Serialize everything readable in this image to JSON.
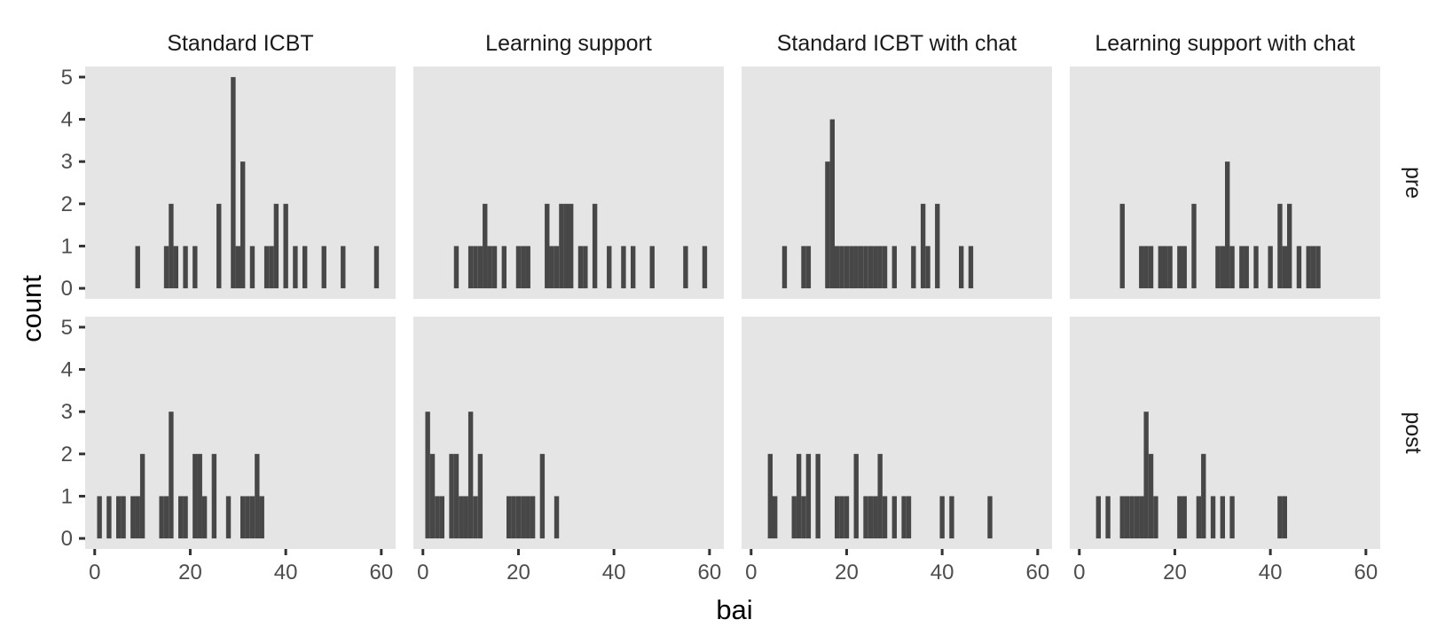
{
  "chart_data": {
    "type": "bar",
    "xlabel": "bai",
    "ylabel": "count",
    "xlim": [
      -2,
      63
    ],
    "ylim": [
      0,
      5
    ],
    "xticks": [
      0,
      20,
      40,
      60
    ],
    "yticks": [
      0,
      1,
      2,
      3,
      4,
      5
    ],
    "columns": [
      "Standard ICBT",
      "Learning support",
      "Standard ICBT with chat",
      "Learning support with chat"
    ],
    "rows": [
      "pre",
      "post"
    ],
    "panels": [
      {
        "column": "Standard ICBT",
        "row": "pre",
        "bars": [
          [
            9,
            1
          ],
          [
            15,
            1
          ],
          [
            16,
            2
          ],
          [
            17,
            1
          ],
          [
            19,
            1
          ],
          [
            21,
            1
          ],
          [
            26,
            2
          ],
          [
            29,
            5
          ],
          [
            30,
            1
          ],
          [
            31,
            3
          ],
          [
            33,
            1
          ],
          [
            36,
            1
          ],
          [
            37,
            1
          ],
          [
            38,
            2
          ],
          [
            40,
            2
          ],
          [
            42,
            1
          ],
          [
            44,
            1
          ],
          [
            48,
            1
          ],
          [
            52,
            1
          ],
          [
            59,
            1
          ]
        ]
      },
      {
        "column": "Learning support",
        "row": "pre",
        "bars": [
          [
            7,
            1
          ],
          [
            10,
            1
          ],
          [
            11,
            1
          ],
          [
            12,
            1
          ],
          [
            13,
            2
          ],
          [
            14,
            1
          ],
          [
            15,
            1
          ],
          [
            17,
            1
          ],
          [
            20,
            1
          ],
          [
            21,
            1
          ],
          [
            22,
            1
          ],
          [
            26,
            2
          ],
          [
            27,
            1
          ],
          [
            28,
            1
          ],
          [
            29,
            2
          ],
          [
            30,
            2
          ],
          [
            31,
            2
          ],
          [
            33,
            1
          ],
          [
            34,
            1
          ],
          [
            36,
            2
          ],
          [
            39,
            1
          ],
          [
            42,
            1
          ],
          [
            44,
            1
          ],
          [
            48,
            1
          ],
          [
            55,
            1
          ],
          [
            59,
            1
          ]
        ]
      },
      {
        "column": "Standard ICBT with chat",
        "row": "pre",
        "bars": [
          [
            7,
            1
          ],
          [
            11,
            1
          ],
          [
            12,
            1
          ],
          [
            16,
            3
          ],
          [
            17,
            4
          ],
          [
            18,
            1
          ],
          [
            19,
            1
          ],
          [
            20,
            1
          ],
          [
            21,
            1
          ],
          [
            22,
            1
          ],
          [
            23,
            1
          ],
          [
            24,
            1
          ],
          [
            25,
            1
          ],
          [
            26,
            1
          ],
          [
            27,
            1
          ],
          [
            28,
            1
          ],
          [
            30,
            1
          ],
          [
            34,
            1
          ],
          [
            36,
            2
          ],
          [
            37,
            1
          ],
          [
            39,
            2
          ],
          [
            44,
            1
          ],
          [
            46,
            1
          ]
        ]
      },
      {
        "column": "Learning support with chat",
        "row": "pre",
        "bars": [
          [
            9,
            2
          ],
          [
            13,
            1
          ],
          [
            14,
            1
          ],
          [
            15,
            1
          ],
          [
            17,
            1
          ],
          [
            18,
            1
          ],
          [
            19,
            1
          ],
          [
            21,
            1
          ],
          [
            22,
            1
          ],
          [
            24,
            2
          ],
          [
            29,
            1
          ],
          [
            30,
            1
          ],
          [
            31,
            3
          ],
          [
            32,
            1
          ],
          [
            34,
            1
          ],
          [
            35,
            1
          ],
          [
            37,
            1
          ],
          [
            40,
            1
          ],
          [
            42,
            2
          ],
          [
            43,
            1
          ],
          [
            44,
            2
          ],
          [
            46,
            1
          ],
          [
            48,
            1
          ],
          [
            49,
            1
          ],
          [
            50,
            1
          ]
        ]
      },
      {
        "column": "Standard ICBT",
        "row": "post",
        "bars": [
          [
            1,
            1
          ],
          [
            3,
            1
          ],
          [
            5,
            1
          ],
          [
            6,
            1
          ],
          [
            8,
            1
          ],
          [
            9,
            1
          ],
          [
            10,
            2
          ],
          [
            14,
            1
          ],
          [
            15,
            1
          ],
          [
            16,
            3
          ],
          [
            18,
            1
          ],
          [
            19,
            1
          ],
          [
            21,
            2
          ],
          [
            22,
            2
          ],
          [
            23,
            1
          ],
          [
            25,
            2
          ],
          [
            28,
            1
          ],
          [
            31,
            1
          ],
          [
            32,
            1
          ],
          [
            33,
            1
          ],
          [
            34,
            2
          ],
          [
            35,
            1
          ]
        ]
      },
      {
        "column": "Learning support",
        "row": "post",
        "bars": [
          [
            1,
            3
          ],
          [
            2,
            2
          ],
          [
            3,
            1
          ],
          [
            4,
            1
          ],
          [
            6,
            2
          ],
          [
            7,
            2
          ],
          [
            8,
            1
          ],
          [
            9,
            1
          ],
          [
            10,
            3
          ],
          [
            11,
            1
          ],
          [
            12,
            2
          ],
          [
            18,
            1
          ],
          [
            19,
            1
          ],
          [
            20,
            1
          ],
          [
            21,
            1
          ],
          [
            22,
            1
          ],
          [
            23,
            1
          ],
          [
            25,
            2
          ],
          [
            28,
            1
          ]
        ]
      },
      {
        "column": "Standard ICBT with chat",
        "row": "post",
        "bars": [
          [
            4,
            2
          ],
          [
            5,
            1
          ],
          [
            9,
            1
          ],
          [
            10,
            2
          ],
          [
            11,
            1
          ],
          [
            12,
            2
          ],
          [
            14,
            2
          ],
          [
            18,
            1
          ],
          [
            19,
            1
          ],
          [
            20,
            1
          ],
          [
            22,
            2
          ],
          [
            24,
            1
          ],
          [
            25,
            1
          ],
          [
            26,
            1
          ],
          [
            27,
            2
          ],
          [
            28,
            1
          ],
          [
            30,
            1
          ],
          [
            32,
            1
          ],
          [
            33,
            1
          ],
          [
            40,
            1
          ],
          [
            42,
            1
          ],
          [
            50,
            1
          ]
        ]
      },
      {
        "column": "Learning support with chat",
        "row": "post",
        "bars": [
          [
            4,
            1
          ],
          [
            6,
            1
          ],
          [
            9,
            1
          ],
          [
            10,
            1
          ],
          [
            11,
            1
          ],
          [
            12,
            1
          ],
          [
            13,
            1
          ],
          [
            14,
            3
          ],
          [
            15,
            2
          ],
          [
            16,
            1
          ],
          [
            21,
            1
          ],
          [
            22,
            1
          ],
          [
            25,
            1
          ],
          [
            26,
            2
          ],
          [
            28,
            1
          ],
          [
            30,
            1
          ],
          [
            32,
            1
          ],
          [
            42,
            1
          ],
          [
            43,
            1
          ]
        ]
      }
    ]
  }
}
